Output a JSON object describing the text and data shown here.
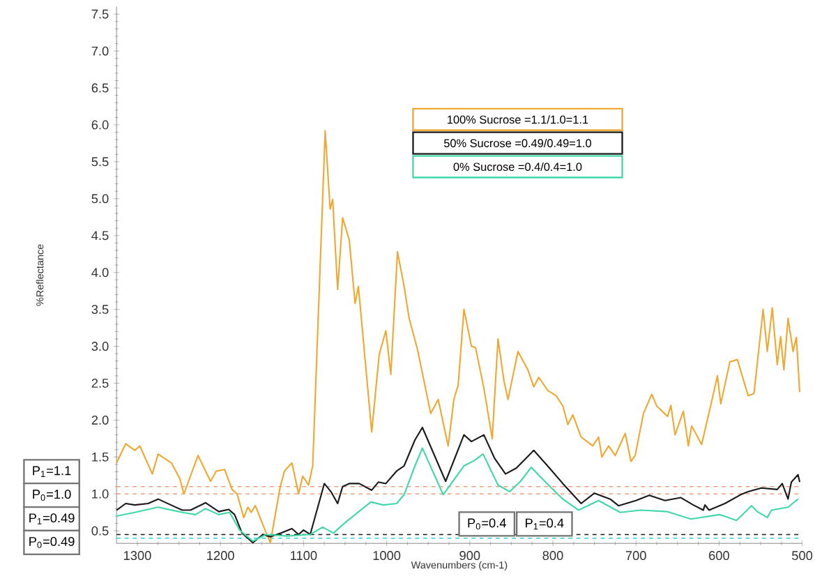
{
  "chart_data": {
    "type": "line",
    "xlabel": "Wavenumbers (cm-1)",
    "ylabel": "%Reflectance",
    "xlim": [
      1325,
      500
    ],
    "ylim": [
      0.33,
      7.6
    ],
    "xticks": [
      1300,
      1200,
      1100,
      1000,
      900,
      800,
      700,
      600,
      500
    ],
    "yticks": [
      {
        "value": 0.5,
        "label": "0.5"
      },
      {
        "value": 1.0,
        "label": "1.0"
      },
      {
        "value": 1.5,
        "label": "1.5"
      },
      {
        "value": 2.0,
        "label": "2.0"
      },
      {
        "value": 2.5,
        "label": "2.5"
      },
      {
        "value": 3.0,
        "label": "3.0"
      },
      {
        "value": 3.5,
        "label": "3.5"
      },
      {
        "value": 4.0,
        "label": "4.0"
      },
      {
        "value": 4.5,
        "label": "4.5"
      },
      {
        "value": 5.0,
        "label": "5.0"
      },
      {
        "value": 5.5,
        "label": "5.5"
      },
      {
        "value": 6.0,
        "label": "6.0"
      },
      {
        "value": 6.5,
        "label": "6.5"
      },
      {
        "value": 7.0,
        "label": "7.0"
      },
      {
        "value": 7.5,
        "label": "7.5"
      }
    ],
    "legend": "top",
    "series": [
      {
        "name": "100% Sucrose =1.1/1.0=1.1",
        "color": "#f0a830",
        "x": [
          1325,
          1314,
          1303,
          1297,
          1282,
          1275,
          1259,
          1249,
          1244,
          1227,
          1212,
          1205,
          1195,
          1186,
          1180,
          1172,
          1167,
          1163,
          1158,
          1145,
          1140,
          1128,
          1123,
          1114,
          1106,
          1101,
          1094,
          1089,
          1074,
          1068,
          1065,
          1059,
          1053,
          1045,
          1038,
          1034,
          1018,
          1009,
          1001,
          995,
          987,
          979,
          973,
          963,
          947,
          938,
          926,
          919,
          914,
          907,
          898,
          893,
          883,
          873,
          866,
          859,
          854,
          842,
          830,
          823,
          817,
          806,
          796,
          788,
          782,
          776,
          766,
          752,
          745,
          741,
          733,
          725,
          713,
          706,
          701,
          691,
          681,
          675,
          662,
          658,
          653,
          643,
          637,
          633,
          621,
          610,
          602,
          598,
          587,
          578,
          565,
          558,
          547,
          542,
          536,
          530,
          526,
          522,
          517,
          511,
          507,
          503
        ],
        "values": [
          1.42,
          1.68,
          1.59,
          1.65,
          1.27,
          1.54,
          1.42,
          1.21,
          1.0,
          1.52,
          1.17,
          1.31,
          1.33,
          1.06,
          1.0,
          0.68,
          0.82,
          0.75,
          0.84,
          0.47,
          0.34,
          1.1,
          1.31,
          1.42,
          1.0,
          1.24,
          1.12,
          1.38,
          5.92,
          4.86,
          4.99,
          3.77,
          4.74,
          4.44,
          3.58,
          3.81,
          1.84,
          2.89,
          3.21,
          2.62,
          4.28,
          3.81,
          3.38,
          2.96,
          2.09,
          2.28,
          1.65,
          2.29,
          2.47,
          3.5,
          3.0,
          2.98,
          2.43,
          1.75,
          3.1,
          2.54,
          2.28,
          2.93,
          2.68,
          2.45,
          2.58,
          2.4,
          2.33,
          2.19,
          1.94,
          2.07,
          1.77,
          1.65,
          1.77,
          1.5,
          1.65,
          1.52,
          1.82,
          1.44,
          1.52,
          2.09,
          2.35,
          2.19,
          2.05,
          2.2,
          1.8,
          2.12,
          1.65,
          1.92,
          1.67,
          2.2,
          2.6,
          2.22,
          2.79,
          2.82,
          2.33,
          2.36,
          3.5,
          2.93,
          3.52,
          2.75,
          3.13,
          2.68,
          3.38,
          2.93,
          3.12,
          2.38
        ]
      },
      {
        "name": "50% Sucrose =0.49/0.49=1.0",
        "color": "#1a1a1a",
        "x": [
          1325,
          1314,
          1303,
          1287,
          1275,
          1246,
          1236,
          1218,
          1202,
          1190,
          1183,
          1174,
          1161,
          1149,
          1140,
          1127,
          1114,
          1106,
          1100,
          1092,
          1075,
          1067,
          1059,
          1053,
          1045,
          1033,
          1018,
          1010,
          1001,
          988,
          979,
          966,
          957,
          929,
          907,
          898,
          883,
          870,
          857,
          844,
          823,
          804,
          788,
          766,
          750,
          731,
          721,
          700,
          684,
          665,
          646,
          631,
          619,
          617,
          612,
          593,
          574,
          565,
          549,
          530,
          524,
          517,
          513,
          505,
          503
        ],
        "values": [
          0.78,
          0.87,
          0.85,
          0.87,
          0.93,
          0.78,
          0.78,
          0.88,
          0.76,
          0.79,
          0.72,
          0.47,
          0.34,
          0.45,
          0.42,
          0.47,
          0.53,
          0.45,
          0.51,
          0.45,
          1.14,
          1.03,
          0.87,
          1.1,
          1.14,
          1.14,
          1.05,
          1.16,
          1.14,
          1.31,
          1.38,
          1.73,
          1.9,
          1.17,
          1.8,
          1.71,
          1.8,
          1.48,
          1.27,
          1.35,
          1.59,
          1.35,
          1.14,
          0.87,
          1.01,
          0.93,
          0.84,
          0.91,
          0.98,
          0.91,
          0.95,
          0.85,
          0.78,
          0.85,
          0.78,
          0.87,
          0.99,
          1.03,
          1.08,
          1.06,
          1.14,
          0.93,
          1.16,
          1.26,
          1.16
        ]
      },
      {
        "name": "0% Sucrose =0.4/0.4=1.0",
        "color": "#40d8a8",
        "x": [
          1325,
          1303,
          1275,
          1246,
          1230,
          1218,
          1202,
          1189,
          1177,
          1161,
          1145,
          1120,
          1092,
          1077,
          1064,
          1048,
          1019,
          1004,
          988,
          979,
          966,
          957,
          932,
          907,
          895,
          884,
          866,
          852,
          839,
          826,
          807,
          788,
          769,
          745,
          719,
          694,
          662,
          634,
          599,
          579,
          561,
          554,
          542,
          537,
          517,
          505
        ],
        "values": [
          0.7,
          0.75,
          0.82,
          0.75,
          0.72,
          0.8,
          0.72,
          0.75,
          0.51,
          0.36,
          0.45,
          0.43,
          0.45,
          0.55,
          0.47,
          0.63,
          0.89,
          0.85,
          0.87,
          0.99,
          1.38,
          1.62,
          0.99,
          1.38,
          1.45,
          1.54,
          1.12,
          1.03,
          1.17,
          1.36,
          1.14,
          0.93,
          0.78,
          0.91,
          0.75,
          0.78,
          0.76,
          0.66,
          0.72,
          0.64,
          0.84,
          0.76,
          0.68,
          0.78,
          0.82,
          0.93
        ]
      }
    ],
    "ref_lines": [
      {
        "axis": "y",
        "value": 1.1,
        "color": "#f0a080",
        "line_style": "dashed"
      },
      {
        "axis": "y",
        "value": 1.0,
        "color": "#f0a080",
        "line_style": "dashed"
      },
      {
        "axis": "y",
        "value": 0.45,
        "color": "#1a1a1a",
        "line_style": "dashed"
      },
      {
        "axis": "y",
        "value": 0.4,
        "color": "#30d0e0",
        "line_style": "dashed"
      }
    ],
    "annotations": [
      "P$_{1}$=1.1",
      "P$_{0}$=1.0",
      "P$_{1}$=0.49",
      "P$_{0}$=0.49",
      "P$_{0}$=0.4",
      "P$_{1}$=0.4"
    ]
  }
}
